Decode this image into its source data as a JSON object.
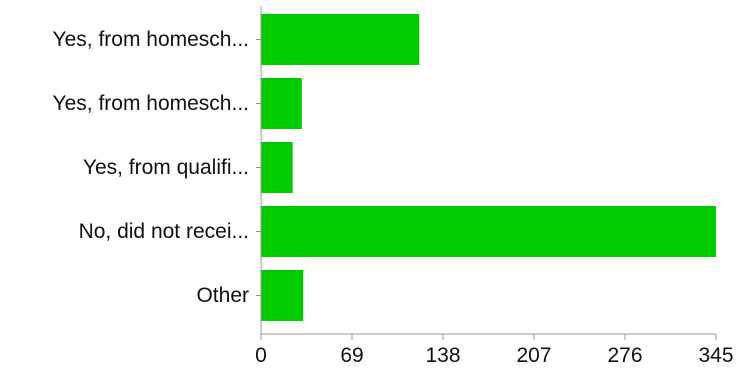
{
  "chart_data": {
    "type": "bar",
    "orientation": "horizontal",
    "categories": [
      "Yes, from homesch...",
      "Yes, from homesch...",
      "Yes, from qualifi...",
      "No, did not recei...",
      "Other"
    ],
    "values": [
      120,
      31,
      24,
      345,
      32
    ],
    "xlim": [
      0,
      345
    ],
    "xticks": [
      "0",
      "69",
      "138",
      "207",
      "276",
      "345"
    ],
    "grid": false,
    "bar_color": "#00cc00",
    "axis_color": "#999999"
  }
}
